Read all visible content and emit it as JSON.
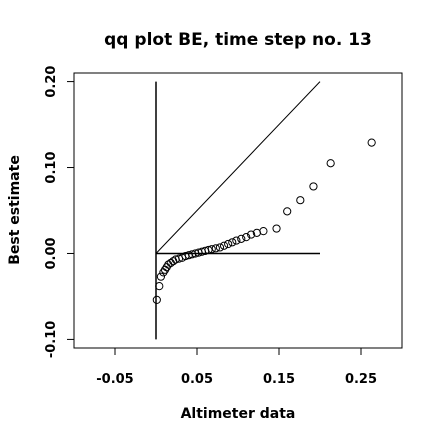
{
  "chart_data": {
    "type": "scatter",
    "title": "qq plot BE, time step no. 13",
    "xlabel": "Altimeter data",
    "ylabel": "Best estimate",
    "xlim": [
      -0.1,
      0.3
    ],
    "ylim": [
      -0.11,
      0.21
    ],
    "x_ticks": [
      -0.05,
      0.05,
      0.15,
      0.25
    ],
    "x_tick_labels": [
      "-0.05",
      "0.05",
      "0.15",
      "0.25"
    ],
    "y_ticks": [
      -0.1,
      0.0,
      0.1,
      0.2
    ],
    "y_tick_labels": [
      "-0.10",
      "0.00",
      "0.10",
      "0.20"
    ],
    "grid": false,
    "legend": false,
    "points": [
      [
        0.001,
        -0.054
      ],
      [
        0.004,
        -0.038
      ],
      [
        0.006,
        -0.027
      ],
      [
        0.009,
        -0.022
      ],
      [
        0.011,
        -0.019
      ],
      [
        0.013,
        -0.016
      ],
      [
        0.015,
        -0.013
      ],
      [
        0.018,
        -0.011
      ],
      [
        0.021,
        -0.009
      ],
      [
        0.024,
        -0.007
      ],
      [
        0.028,
        -0.006
      ],
      [
        0.032,
        -0.005
      ],
      [
        0.036,
        -0.003
      ],
      [
        0.04,
        -0.002
      ],
      [
        0.044,
        -0.001
      ],
      [
        0.048,
        0.0
      ],
      [
        0.052,
        0.001
      ],
      [
        0.056,
        0.002
      ],
      [
        0.06,
        0.003
      ],
      [
        0.064,
        0.004
      ],
      [
        0.068,
        0.005
      ],
      [
        0.073,
        0.006
      ],
      [
        0.078,
        0.007
      ],
      [
        0.083,
        0.009
      ],
      [
        0.088,
        0.011
      ],
      [
        0.093,
        0.013
      ],
      [
        0.098,
        0.015
      ],
      [
        0.104,
        0.017
      ],
      [
        0.11,
        0.019
      ],
      [
        0.116,
        0.022
      ],
      [
        0.123,
        0.024
      ],
      [
        0.131,
        0.026
      ],
      [
        0.147,
        0.029
      ],
      [
        0.16,
        0.049
      ],
      [
        0.176,
        0.062
      ],
      [
        0.192,
        0.078
      ],
      [
        0.213,
        0.105
      ],
      [
        0.263,
        0.129
      ]
    ],
    "reference_lines": [
      {
        "from": [
          0.0,
          0.0
        ],
        "to": [
          0.2,
          0.2
        ]
      },
      {
        "from": [
          0.0,
          0.0
        ],
        "to": [
          0.2,
          0.0
        ]
      },
      {
        "from": [
          0.0,
          -0.1
        ],
        "to": [
          0.0,
          0.2
        ]
      }
    ]
  }
}
